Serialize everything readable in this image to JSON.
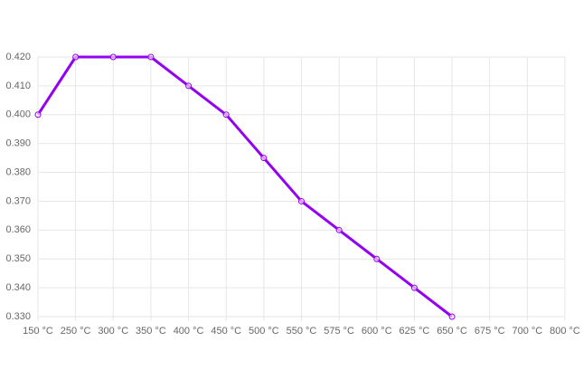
{
  "chart_data": {
    "type": "line",
    "categories": [
      "150 °C",
      "250 °C",
      "300 °C",
      "350 °C",
      "400 °C",
      "450 °C",
      "500 °C",
      "550 °C",
      "575 °C",
      "600 °C",
      "625 °C",
      "650 °C",
      "675 °C",
      "700 °C",
      "800 °C"
    ],
    "series": [
      {
        "color": "#9400f0",
        "values": [
          0.4,
          0.42,
          0.42,
          0.42,
          0.41,
          0.4,
          0.385,
          0.37,
          0.36,
          0.35,
          0.34,
          0.33,
          null,
          null,
          null
        ]
      }
    ],
    "ylim": [
      0.33,
      0.42
    ],
    "yticks": [
      {
        "value": 0.33,
        "label": "0.330"
      },
      {
        "value": 0.34,
        "label": "0.340"
      },
      {
        "value": 0.35,
        "label": "0.350"
      },
      {
        "value": 0.36,
        "label": "0.360"
      },
      {
        "value": 0.37,
        "label": "0.370"
      },
      {
        "value": 0.38,
        "label": "0.380"
      },
      {
        "value": 0.39,
        "label": "0.390"
      },
      {
        "value": 0.4,
        "label": "0.400"
      },
      {
        "value": 0.41,
        "label": "0.410"
      },
      {
        "value": 0.42,
        "label": "0.420"
      }
    ],
    "grid": true
  }
}
